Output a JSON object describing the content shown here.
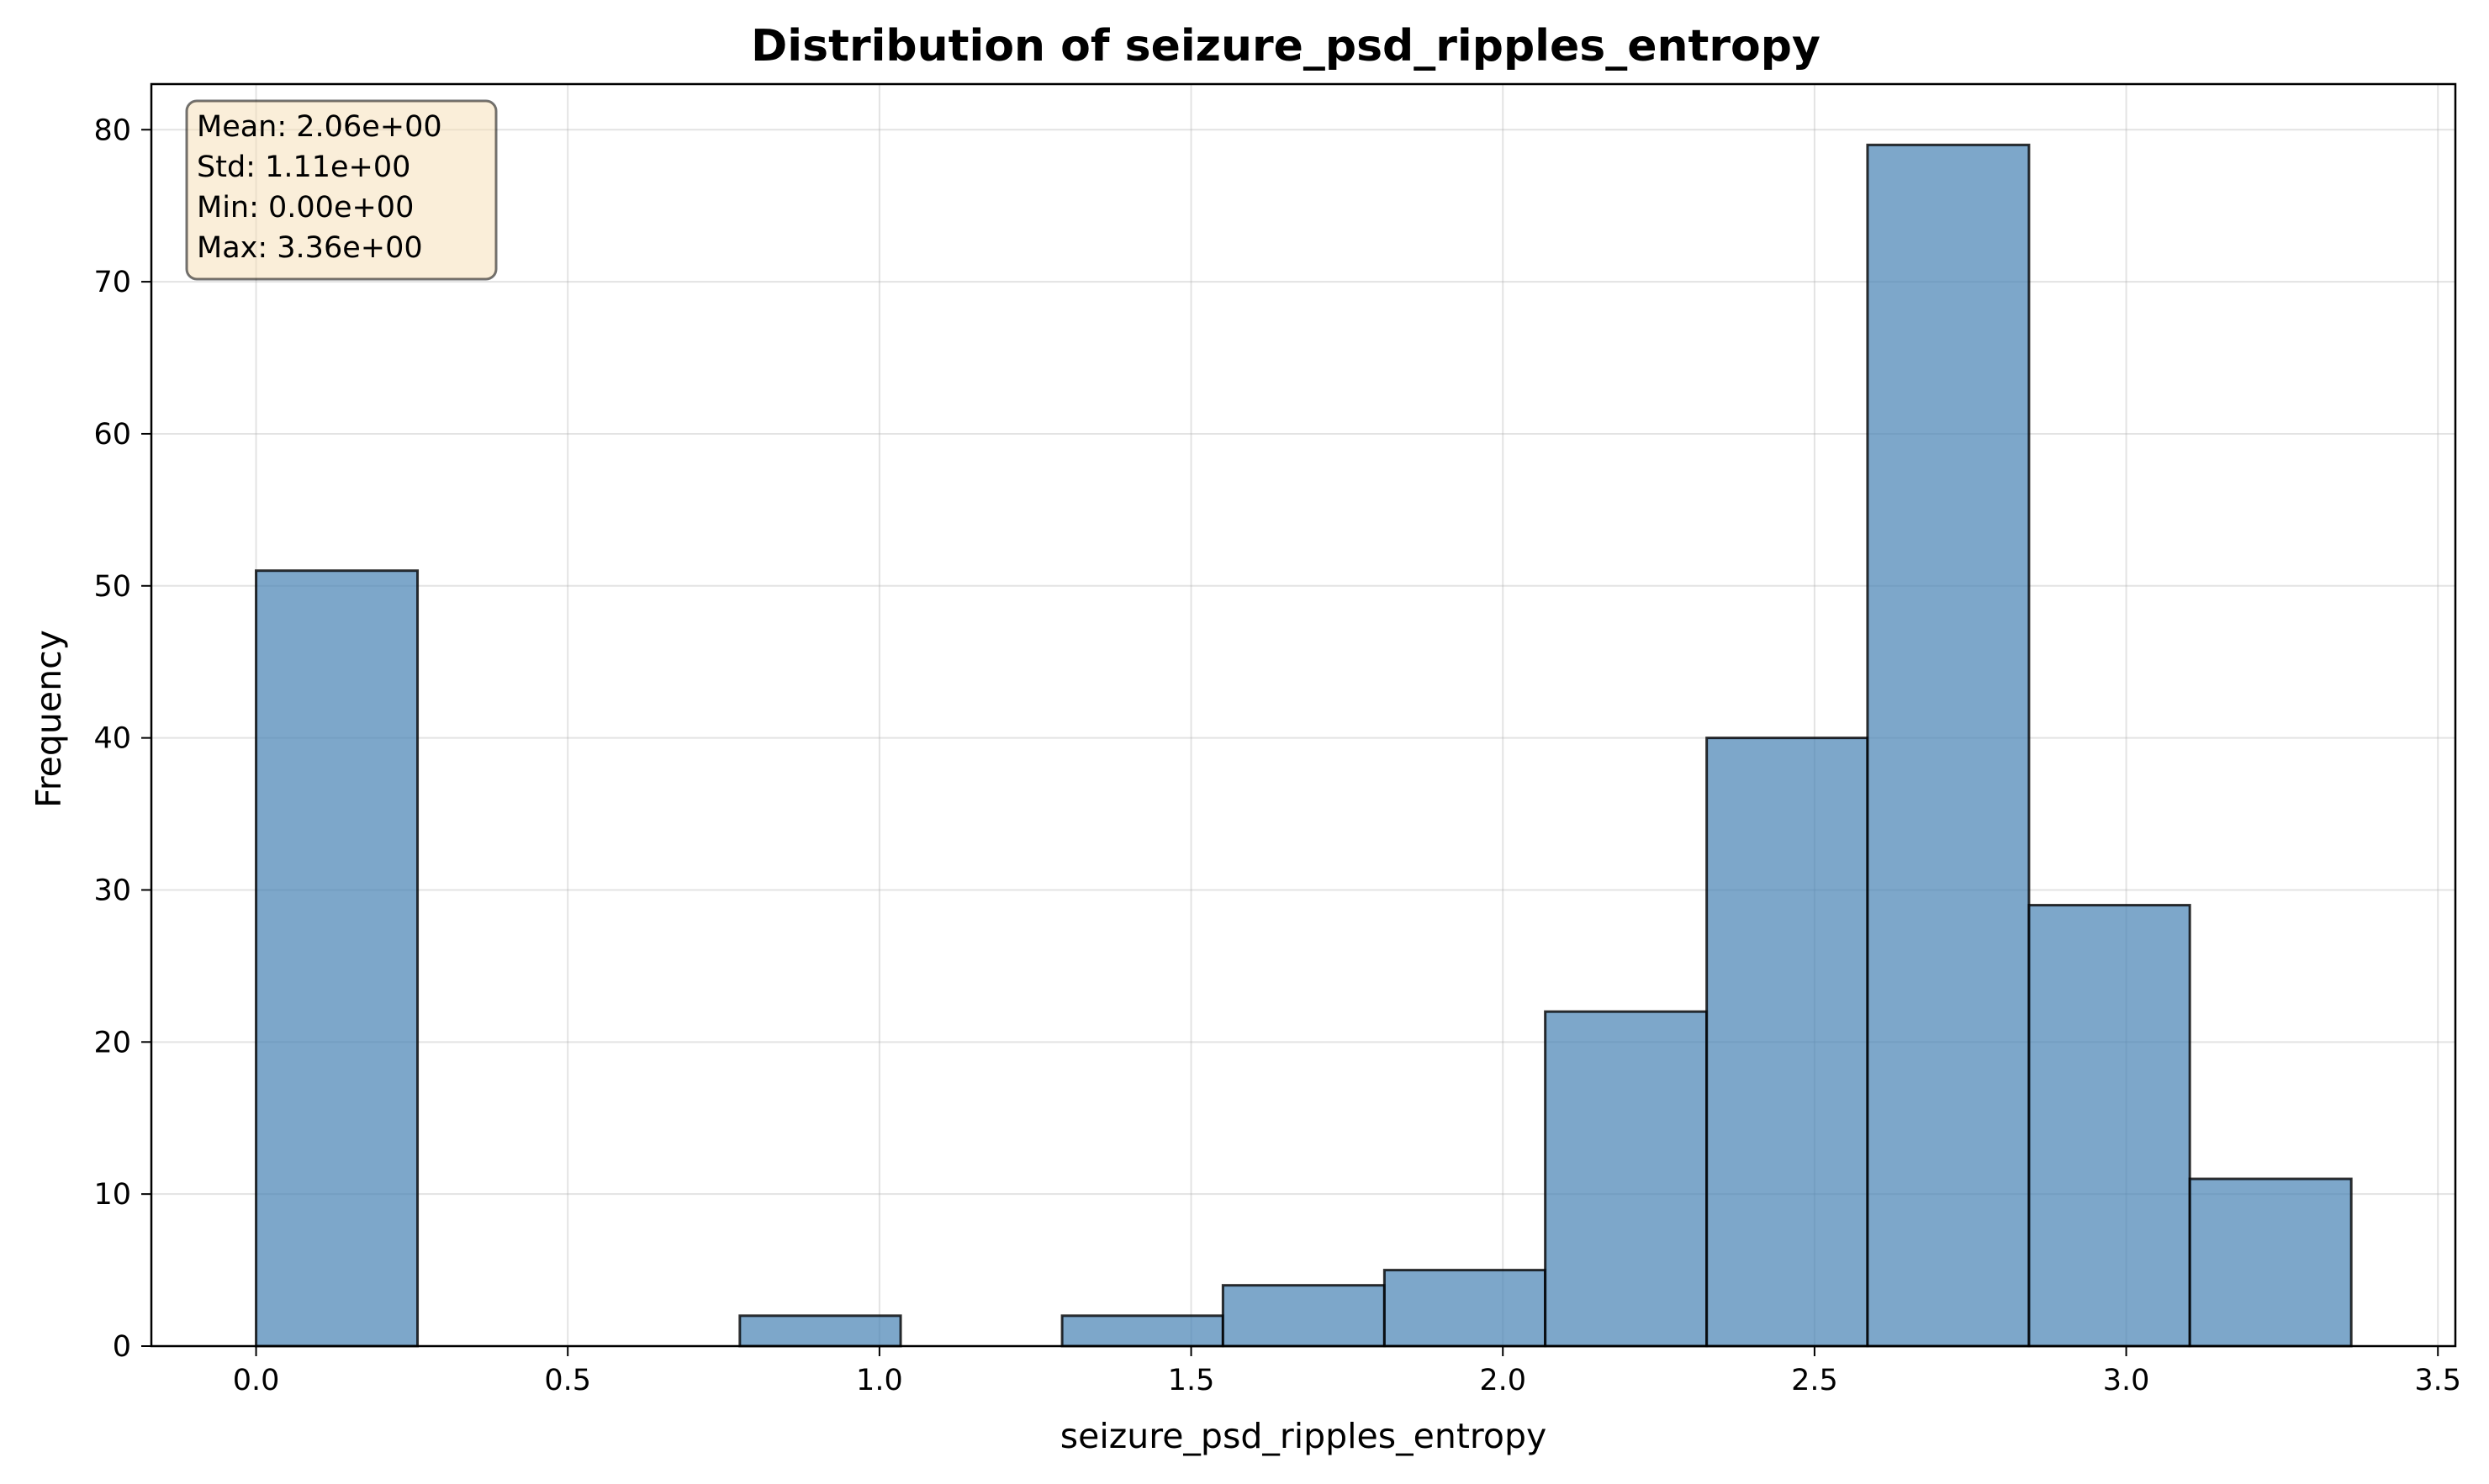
{
  "chart_data": {
    "type": "bar",
    "title": "Distribution of seizure_psd_ripples_entropy",
    "xlabel": "seizure_psd_ripples_entropy",
    "ylabel": "Frequency",
    "xlim": [
      -0.168,
      3.528
    ],
    "ylim": [
      0,
      83
    ],
    "xticks": [
      0.0,
      0.5,
      1.0,
      1.5,
      2.0,
      2.5,
      3.0,
      3.5
    ],
    "xtick_labels": [
      "0.0",
      "0.5",
      "1.0",
      "1.5",
      "2.0",
      "2.5",
      "3.0",
      "3.5"
    ],
    "yticks": [
      0,
      10,
      20,
      30,
      40,
      50,
      60,
      70,
      80
    ],
    "ytick_labels": [
      "0",
      "10",
      "20",
      "30",
      "40",
      "50",
      "60",
      "70",
      "80"
    ],
    "grid": true,
    "bar_color": "#4682b4",
    "bins": [
      {
        "x0": 0.0,
        "x1": 0.259,
        "value": 51
      },
      {
        "x0": 0.259,
        "x1": 0.517,
        "value": 0
      },
      {
        "x0": 0.517,
        "x1": 0.776,
        "value": 0
      },
      {
        "x0": 0.776,
        "x1": 1.034,
        "value": 2
      },
      {
        "x0": 1.034,
        "x1": 1.293,
        "value": 0
      },
      {
        "x0": 1.293,
        "x1": 1.551,
        "value": 2
      },
      {
        "x0": 1.551,
        "x1": 1.81,
        "value": 4
      },
      {
        "x0": 1.81,
        "x1": 2.068,
        "value": 5
      },
      {
        "x0": 2.068,
        "x1": 2.327,
        "value": 22
      },
      {
        "x0": 2.327,
        "x1": 2.585,
        "value": 40
      },
      {
        "x0": 2.585,
        "x1": 2.844,
        "value": 79
      },
      {
        "x0": 2.844,
        "x1": 3.102,
        "value": 29
      },
      {
        "x0": 3.102,
        "x1": 3.361,
        "value": 11
      }
    ],
    "annotation": {
      "lines": [
        "Mean: 2.06e+00",
        "Std: 1.11e+00",
        "Min: 0.00e+00",
        "Max: 3.36e+00"
      ],
      "placement": "top-left",
      "box_color": "#f5deb3"
    }
  }
}
